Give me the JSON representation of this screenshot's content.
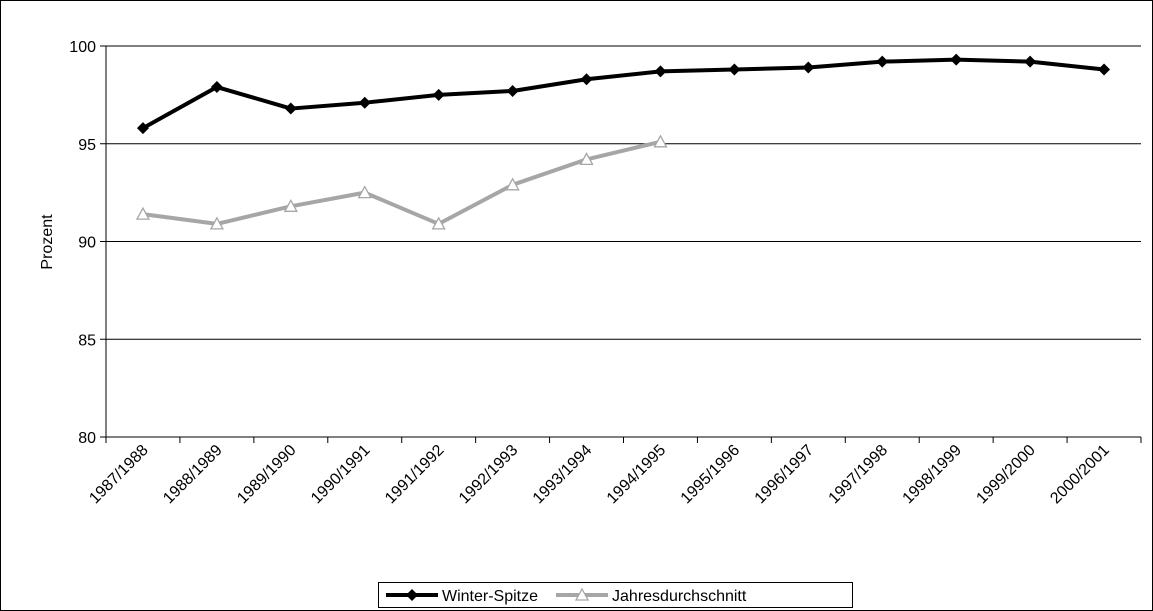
{
  "chart_data": {
    "type": "line",
    "y_label": "Prozent",
    "categories": [
      "1987/1988",
      "1988/1989",
      "1989/1990",
      "1990/1991",
      "1991/1992",
      "1992/1993",
      "1993/1994",
      "1994/1995",
      "1995/1996",
      "1996/1997",
      "1997/1998",
      "1998/1999",
      "1999/2000",
      "2000/2001"
    ],
    "series": [
      {
        "name": "Winter-Spitze",
        "color": "#000000",
        "marker": "diamond",
        "values": [
          95.8,
          97.9,
          96.8,
          97.1,
          97.5,
          97.7,
          98.3,
          98.7,
          98.8,
          98.9,
          99.2,
          99.3,
          99.2,
          98.8
        ]
      },
      {
        "name": "Jahresdurchschnitt",
        "color": "#a6a6a6",
        "marker": "triangle",
        "values": [
          91.4,
          90.9,
          91.8,
          92.5,
          90.9,
          92.9,
          94.2,
          95.1,
          null,
          null,
          null,
          null,
          null,
          null
        ]
      }
    ],
    "ylim": [
      80,
      100
    ],
    "yticks": [
      80,
      85,
      90,
      95,
      100
    ],
    "grid": true,
    "legend": "bottom"
  }
}
